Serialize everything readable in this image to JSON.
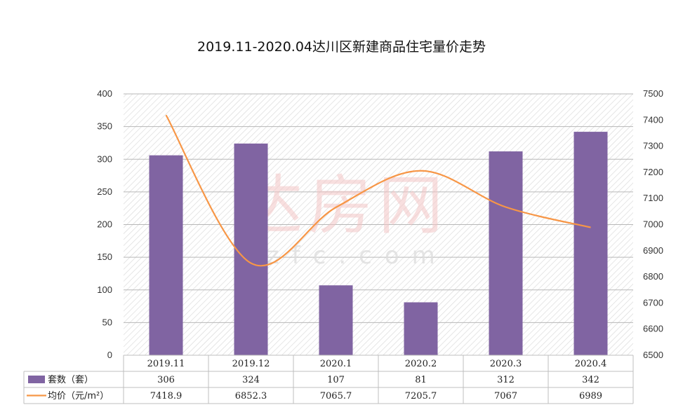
{
  "chart_data": {
    "type": "bar",
    "title": "2019.11-2020.04达川区新建商品住宅量价走势",
    "categories": [
      "2019.11",
      "2019.12",
      "2020.1",
      "2020.2",
      "2020.3",
      "2020.4"
    ],
    "series": [
      {
        "name": "套数（套）",
        "type": "bar",
        "axis": "left",
        "color": "#8064A2",
        "values": [
          306,
          324,
          107,
          81,
          312,
          342
        ],
        "display": [
          "306",
          "324",
          "107",
          "81",
          "312",
          "342"
        ]
      },
      {
        "name": "均价（元/m²）",
        "type": "line",
        "smooth": true,
        "axis": "right",
        "color": "#F79646",
        "values": [
          7418.9,
          6852.3,
          7065.7,
          7205.7,
          7067,
          6989
        ],
        "display": [
          "7418.9",
          "6852.3",
          "7065.7",
          "7205.7",
          "7067",
          "6989"
        ]
      }
    ],
    "y_left": {
      "min": 0,
      "max": 400,
      "step": 50,
      "ticks": [
        "0",
        "50",
        "100",
        "150",
        "200",
        "250",
        "300",
        "350",
        "400"
      ]
    },
    "y_right": {
      "min": 6500,
      "max": 7500,
      "step": 100,
      "ticks": [
        "6500",
        "6600",
        "6700",
        "6800",
        "6900",
        "7000",
        "7100",
        "7200",
        "7300",
        "7400",
        "7500"
      ]
    },
    "grid": true,
    "legend": "data-table"
  },
  "watermark": {
    "text": "达房网",
    "subtext": "dzfc.com"
  }
}
